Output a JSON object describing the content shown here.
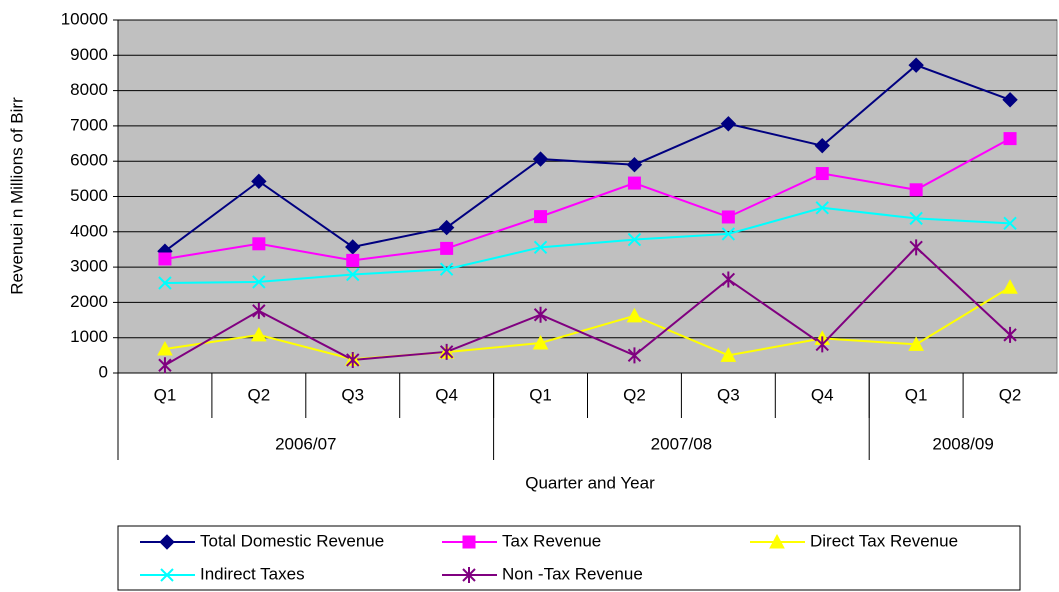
{
  "chart_data": {
    "type": "line",
    "y_label": "Revenuei n Millions of Birr",
    "x_label": "Quarter and Year",
    "categories": [
      "Q1",
      "Q2",
      "Q3",
      "Q4",
      "Q1",
      "Q2",
      "Q3",
      "Q4",
      "Q1",
      "Q2"
    ],
    "category_groups": [
      {
        "label": "2006/07",
        "count": 4
      },
      {
        "label": "2007/08",
        "count": 4
      },
      {
        "label": "2008/09",
        "count": 2
      }
    ],
    "ylim": [
      0,
      10000
    ],
    "yticks": [
      0,
      1000,
      2000,
      3000,
      4000,
      5000,
      6000,
      7000,
      8000,
      9000,
      10000
    ],
    "grid": true,
    "legend": "bottom",
    "series": [
      {
        "name": "Total Domestic Revenue",
        "color": "#000080",
        "marker": "diamond",
        "values": [
          3450,
          5430,
          3570,
          4120,
          6060,
          5900,
          7060,
          6440,
          8720,
          7740
        ]
      },
      {
        "name": "Tax Revenue",
        "color": "#FF00FF",
        "marker": "square",
        "values": [
          3230,
          3660,
          3190,
          3530,
          4430,
          5380,
          4420,
          5650,
          5190,
          6640
        ]
      },
      {
        "name": "Direct Tax Revenue",
        "color": "#FFFF00",
        "marker": "triangle",
        "values": [
          680,
          1080,
          390,
          590,
          850,
          1620,
          500,
          980,
          810,
          2430
        ]
      },
      {
        "name": "Indirect Taxes",
        "color": "#00FFFF",
        "marker": "x",
        "values": [
          2550,
          2580,
          2790,
          2940,
          3560,
          3780,
          3940,
          4680,
          4380,
          4240
        ]
      },
      {
        "name": "Non -Tax Revenue",
        "color": "#800080",
        "marker": "star",
        "values": [
          220,
          1760,
          370,
          600,
          1650,
          500,
          2650,
          810,
          3560,
          1080
        ]
      }
    ]
  }
}
